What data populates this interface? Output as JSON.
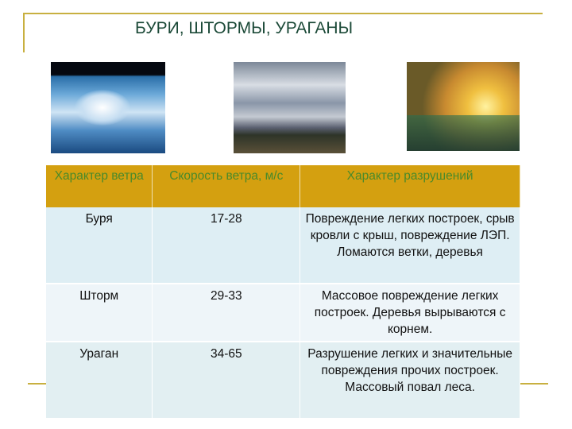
{
  "title": "БУРИ, ШТОРМЫ, УРАГАНЫ",
  "images": [
    "hurricane-from-space",
    "storm-clouds-over-field",
    "stormy-sea-painting"
  ],
  "accent_color": "#d4a010",
  "table": {
    "headers": [
      "Характер ветра",
      "Скорость ветра, м/с",
      "Характер разрушений"
    ],
    "rows": [
      {
        "type": "Буря",
        "speed": "17-28",
        "damage": "Повреждение легких построек, срыв кровли с крыш, повреждение ЛЭП. Ломаются ветки, деревья"
      },
      {
        "type": "Шторм",
        "speed": "29-33",
        "damage": "Массовое повреждение легких построек. Деревья вырываются с корнем."
      },
      {
        "type": "Ураган",
        "speed": "34-65",
        "damage": "Разрушение легких и значительные повреждения прочих построек. Массовый повал леса."
      }
    ]
  }
}
